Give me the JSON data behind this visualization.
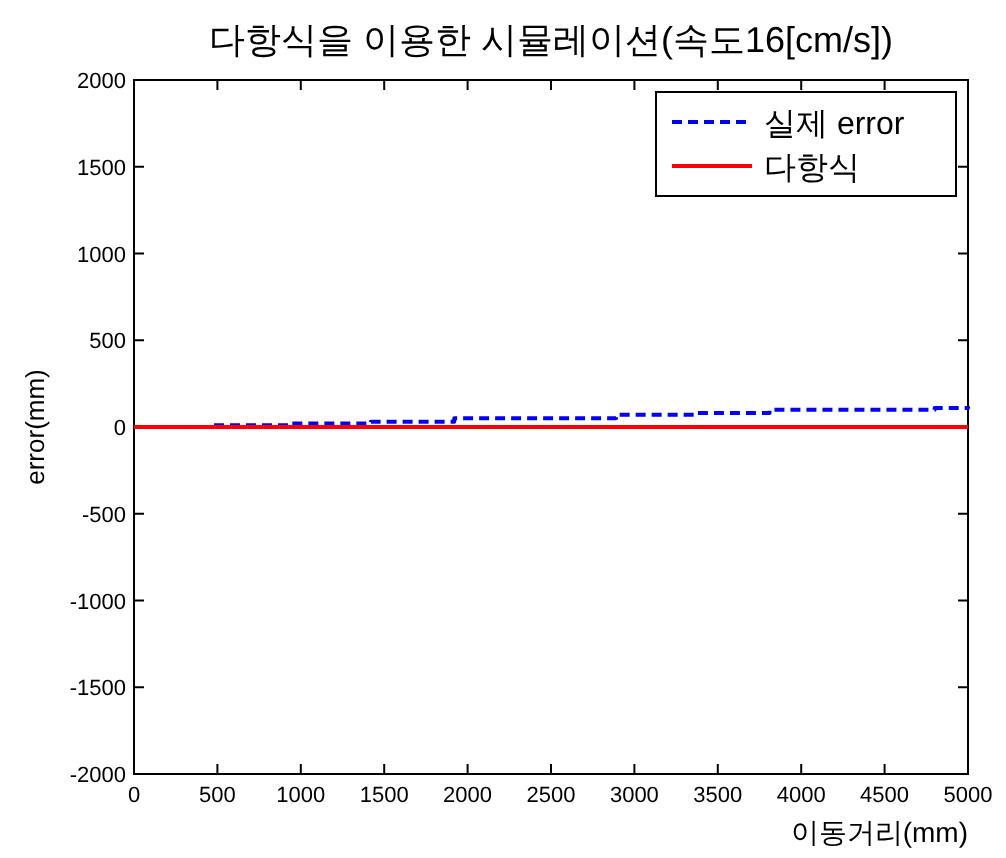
{
  "chart_data": {
    "type": "line",
    "title": "다항식을 이용한 시뮬레이션(속도16[cm/s])",
    "xlabel": "이동거리(mm)",
    "ylabel": "error(mm)",
    "xlim": [
      0,
      5000
    ],
    "xticks": [
      0,
      500,
      1000,
      1500,
      2000,
      2500,
      3000,
      3500,
      4000,
      4500,
      5000
    ],
    "ylim": [
      -2000,
      2000
    ],
    "yticks": [
      -2000,
      -1500,
      -1000,
      -500,
      0,
      500,
      1000,
      1500,
      2000
    ],
    "legend": "top right",
    "grid": false,
    "series": [
      {
        "name": "실제 error",
        "color": "#0000ff",
        "line_style": "dashed",
        "type": "step",
        "x": [
          480,
          940,
          1420,
          1920,
          2390,
          2890,
          3370,
          3810,
          4330,
          4800,
          5000
        ],
        "values": [
          10,
          20,
          30,
          50,
          50,
          70,
          80,
          100,
          100,
          110,
          120
        ]
      },
      {
        "name": "다항식",
        "color": "#ff0000",
        "line_style": "solid",
        "x": [
          0,
          5000
        ],
        "values": [
          0,
          0
        ]
      }
    ]
  }
}
